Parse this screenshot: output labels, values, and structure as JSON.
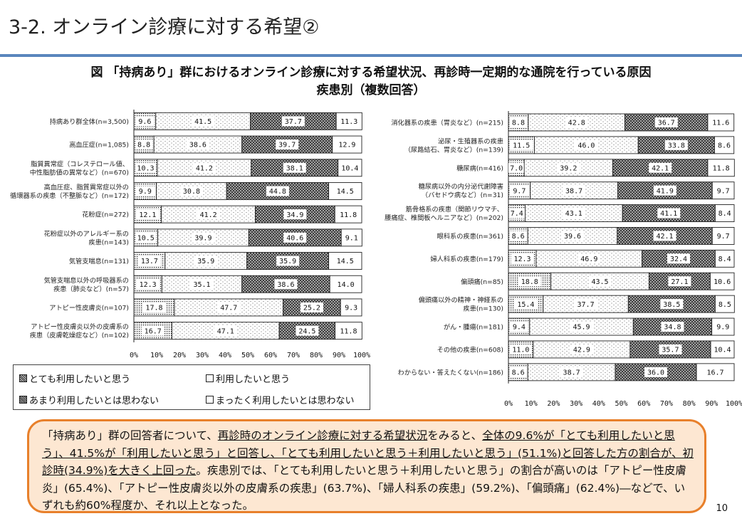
{
  "header": {
    "title": "3-2. オンライン診療に対する希望②",
    "figure_title_line1": "図 「持病あり」群におけるオンライン診療に対する希望状況、再診時一定期的な通院を行っている原因",
    "figure_title_line2": "疾患別（複数回答）"
  },
  "legend": {
    "items": [
      {
        "label": "とても利用したいと思う",
        "pattern": "dots-dense"
      },
      {
        "label": "利用したいと思う",
        "pattern": "dots-sparse"
      },
      {
        "label": "あまり利用したいとは思わない",
        "pattern": "cross-hatch"
      },
      {
        "label": "まったく利用したいとは思わない",
        "pattern": "blank"
      }
    ]
  },
  "colors": {
    "accent_rule": "#5a86bd",
    "summary_border": "#e8802b",
    "summary_bg": "#fde7d2"
  },
  "chart_data": [
    {
      "type": "bar",
      "orientation": "horizontal",
      "stacked": true,
      "xlim": [
        0,
        100
      ],
      "x_ticks": [
        "0%",
        "10%",
        "20%",
        "30%",
        "40%",
        "50%",
        "60%",
        "70%",
        "80%",
        "90%",
        "100%"
      ],
      "series_names": [
        "とても利用したいと思う",
        "利用したいと思う",
        "あまり利用したいとは思わない",
        "まったく利用したいとは思わない"
      ],
      "categories": [
        {
          "label": [
            "持病あり群全体(n=3,500)"
          ],
          "values": [
            9.6,
            41.5,
            37.7,
            11.3
          ]
        },
        {
          "label": [
            "高血圧症(n=1,085)"
          ],
          "values": [
            8.8,
            38.6,
            39.7,
            12.9
          ]
        },
        {
          "label": [
            "脂質異常症（コレステロール値、",
            "中性脂肪値の異常など）(n=670)"
          ],
          "values": [
            10.3,
            41.2,
            38.1,
            10.4
          ]
        },
        {
          "label": [
            "高血圧症、脂質異常症以外の",
            "循環器系の疾患（不整脈など）(n=172)"
          ],
          "values": [
            9.9,
            30.8,
            44.8,
            14.5
          ]
        },
        {
          "label": [
            "花粉症(n=272)"
          ],
          "values": [
            12.1,
            41.2,
            34.9,
            11.8
          ]
        },
        {
          "label": [
            "花粉症以外のアレルギー系の",
            "疾患(n=143)"
          ],
          "values": [
            10.5,
            39.9,
            40.6,
            9.1
          ]
        },
        {
          "label": [
            "気管支喘息(n=131)"
          ],
          "values": [
            13.7,
            35.9,
            35.9,
            14.5
          ]
        },
        {
          "label": [
            "気管支喘息以外の呼吸器系の",
            "疾患（肺炎など）(n=57)"
          ],
          "values": [
            12.3,
            35.1,
            38.6,
            14.0
          ]
        },
        {
          "label": [
            "アトピー性皮膚炎(n=107)"
          ],
          "values": [
            17.8,
            47.7,
            25.2,
            9.3
          ]
        },
        {
          "label": [
            "アトピー性皮膚炎以外の皮膚系の",
            "疾患（皮膚乾燥症など）(n=102)"
          ],
          "values": [
            16.7,
            47.1,
            24.5,
            11.8
          ]
        }
      ]
    },
    {
      "type": "bar",
      "orientation": "horizontal",
      "stacked": true,
      "xlim": [
        0,
        100
      ],
      "x_ticks": [
        "0%",
        "10%",
        "20%",
        "30%",
        "40%",
        "50%",
        "60%",
        "70%",
        "80%",
        "90%",
        "100%"
      ],
      "series_names": [
        "とても利用したいと思う",
        "利用したいと思う",
        "あまり利用したいとは思わない",
        "まったく利用したいとは思わない"
      ],
      "categories": [
        {
          "label": [
            "消化器系の疾患（胃炎など）(n=215)"
          ],
          "values": [
            8.8,
            42.8,
            36.7,
            11.6
          ]
        },
        {
          "label": [
            "泌尿・生殖器系の疾患",
            "（尿路結石、胃炎など）(n=139)"
          ],
          "values": [
            11.5,
            46.0,
            33.8,
            8.6
          ]
        },
        {
          "label": [
            "糖尿病(n=416)"
          ],
          "values": [
            7.0,
            39.2,
            42.1,
            11.8
          ]
        },
        {
          "label": [
            "糖尿病以外の内分泌代謝障害",
            "（バセドウ病など）(n=31)"
          ],
          "values": [
            9.7,
            38.7,
            41.9,
            9.7
          ]
        },
        {
          "label": [
            "筋骨格系の疾患（関節リウマチ、",
            "腰痛症、椎間板ヘルニアなど）(n=202)"
          ],
          "values": [
            7.4,
            43.1,
            41.1,
            8.4
          ]
        },
        {
          "label": [
            "眼科系の疾患(n=361)"
          ],
          "values": [
            8.6,
            39.6,
            42.1,
            9.7
          ]
        },
        {
          "label": [
            "婦人科系の疾患(n=179)"
          ],
          "values": [
            12.3,
            46.9,
            32.4,
            8.4
          ]
        },
        {
          "label": [
            "偏頭痛(n=85)"
          ],
          "values": [
            18.8,
            43.5,
            27.1,
            10.6
          ]
        },
        {
          "label": [
            "偏頭痛以外の精神・神経系の",
            "疾患(n=130)"
          ],
          "values": [
            15.4,
            37.7,
            38.5,
            8.5
          ]
        },
        {
          "label": [
            "がん・腫瘍(n=181)"
          ],
          "values": [
            9.4,
            45.9,
            34.8,
            9.9
          ]
        },
        {
          "label": [
            "その他の疾患(n=608)"
          ],
          "values": [
            11.0,
            42.9,
            35.7,
            10.4
          ]
        },
        {
          "label": [
            "わからない・答えたくない(n=186)"
          ],
          "values": [
            8.6,
            38.7,
            36.0,
            16.7
          ]
        }
      ]
    }
  ],
  "summary": {
    "segments": [
      {
        "text": "「持病あり」群の回答者について、",
        "u": false
      },
      {
        "text": "再診時のオンライン診療に対する希望状況",
        "u": true
      },
      {
        "text": "をみると、",
        "u": false
      },
      {
        "text": "全体の9.6%が「とても利用したいと思う」、41.5%が「利用したいと思う」と回答し、「とても利用したいと思う＋利用したいと思う」(51.1%)と回答した方の割合が、初診時(34.9%)を大きく上回った",
        "u": true
      },
      {
        "text": "。疾患別では、「とても利用したいと思う＋利用したいと思う」の割合が高いのは「アトピー性皮膚炎」(65.4%)、「アトピー性皮膚炎以外の皮膚系の疾患」(63.7%)、「婦人科系の疾患」(59.2%)、「偏頭痛」(62.4%)―などで、いずれも約60%程度か、それ以上となった。",
        "u": false
      }
    ]
  },
  "page_number": "10"
}
